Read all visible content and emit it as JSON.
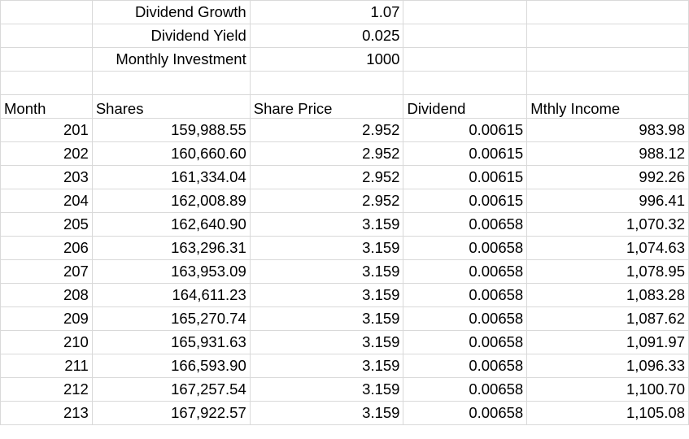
{
  "params": [
    {
      "label": "Dividend Growth",
      "value": "1.07"
    },
    {
      "label": "Dividend Yield",
      "value": "0.025"
    },
    {
      "label": "Monthly Investment",
      "value": "1000"
    }
  ],
  "headers": {
    "month": "Month",
    "shares": "Shares",
    "share_price": "Share Price",
    "dividend": "Dividend",
    "monthly_income": "Mthly Income"
  },
  "rows": [
    {
      "month": "201",
      "shares": "159,988.55",
      "price": "2.952",
      "dividend": "0.00615",
      "income": "983.98"
    },
    {
      "month": "202",
      "shares": "160,660.60",
      "price": "2.952",
      "dividend": "0.00615",
      "income": "988.12"
    },
    {
      "month": "203",
      "shares": "161,334.04",
      "price": "2.952",
      "dividend": "0.00615",
      "income": "992.26"
    },
    {
      "month": "204",
      "shares": "162,008.89",
      "price": "2.952",
      "dividend": "0.00615",
      "income": "996.41"
    },
    {
      "month": "205",
      "shares": "162,640.90",
      "price": "3.159",
      "dividend": "0.00658",
      "income": "1,070.32"
    },
    {
      "month": "206",
      "shares": "163,296.31",
      "price": "3.159",
      "dividend": "0.00658",
      "income": "1,074.63"
    },
    {
      "month": "207",
      "shares": "163,953.09",
      "price": "3.159",
      "dividend": "0.00658",
      "income": "1,078.95"
    },
    {
      "month": "208",
      "shares": "164,611.23",
      "price": "3.159",
      "dividend": "0.00658",
      "income": "1,083.28"
    },
    {
      "month": "209",
      "shares": "165,270.74",
      "price": "3.159",
      "dividend": "0.00658",
      "income": "1,087.62"
    },
    {
      "month": "210",
      "shares": "165,931.63",
      "price": "3.159",
      "dividend": "0.00658",
      "income": "1,091.97"
    },
    {
      "month": "211",
      "shares": "166,593.90",
      "price": "3.159",
      "dividend": "0.00658",
      "income": "1,096.33"
    },
    {
      "month": "212",
      "shares": "167,257.54",
      "price": "3.159",
      "dividend": "0.00658",
      "income": "1,100.70"
    },
    {
      "month": "213",
      "shares": "167,922.57",
      "price": "3.159",
      "dividend": "0.00658",
      "income": "1,105.08"
    }
  ]
}
